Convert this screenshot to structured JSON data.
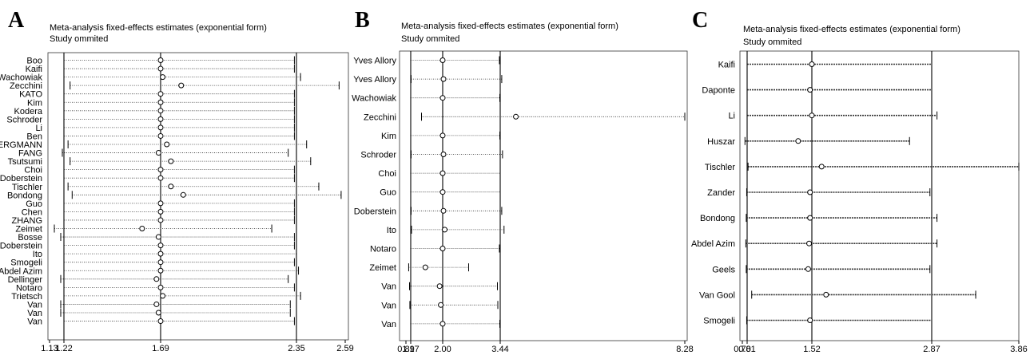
{
  "panels": [
    {
      "letter": "A",
      "title": "Meta-analysis fixed-effects estimates (exponential form)",
      "subtitle": "Study ommited",
      "chart_data": {
        "type": "forest",
        "axis_ticks": [
          "1.13",
          "1.22",
          "1.69",
          "2.35",
          "2.59"
        ],
        "reference_lines": [
          1.22,
          1.69,
          2.35
        ],
        "xlim": [
          1.13,
          2.59
        ],
        "studies": [
          {
            "name": "Boo",
            "low": 1.22,
            "est": 1.69,
            "high": 2.34
          },
          {
            "name": "Kaifi",
            "low": 1.22,
            "est": 1.69,
            "high": 2.34
          },
          {
            "name": "Wachowiak",
            "low": 1.22,
            "est": 1.7,
            "high": 2.37
          },
          {
            "name": "Zecchini",
            "low": 1.25,
            "est": 1.79,
            "high": 2.56
          },
          {
            "name": "KATO",
            "low": 1.22,
            "est": 1.69,
            "high": 2.34
          },
          {
            "name": "Kim",
            "low": 1.22,
            "est": 1.69,
            "high": 2.34
          },
          {
            "name": "Kodera",
            "low": 1.22,
            "est": 1.69,
            "high": 2.34
          },
          {
            "name": "Schroder",
            "low": 1.22,
            "est": 1.69,
            "high": 2.34
          },
          {
            "name": "Li",
            "low": 1.22,
            "est": 1.69,
            "high": 2.34
          },
          {
            "name": "Ben",
            "low": 1.22,
            "est": 1.69,
            "high": 2.34
          },
          {
            "name": "BERGMANN",
            "low": 1.24,
            "est": 1.72,
            "high": 2.4
          },
          {
            "name": "FANG",
            "low": 1.21,
            "est": 1.68,
            "high": 2.31
          },
          {
            "name": "Tsutsumi",
            "low": 1.25,
            "est": 1.74,
            "high": 2.42
          },
          {
            "name": "Choi",
            "low": 1.22,
            "est": 1.69,
            "high": 2.34
          },
          {
            "name": "Doberstein",
            "low": 1.22,
            "est": 1.69,
            "high": 2.34
          },
          {
            "name": "Tischler",
            "low": 1.24,
            "est": 1.74,
            "high": 2.46
          },
          {
            "name": "Bondong",
            "low": 1.26,
            "est": 1.8,
            "high": 2.57
          },
          {
            "name": "Guo",
            "low": 1.22,
            "est": 1.69,
            "high": 2.34
          },
          {
            "name": "Chen",
            "low": 1.22,
            "est": 1.69,
            "high": 2.34
          },
          {
            "name": "ZHANG",
            "low": 1.22,
            "est": 1.69,
            "high": 2.34
          },
          {
            "name": "Zeimet",
            "low": 1.16,
            "est": 1.6,
            "high": 2.23
          },
          {
            "name": "Bosse",
            "low": 1.2,
            "est": 1.68,
            "high": 2.34
          },
          {
            "name": "Doberstein",
            "low": 1.22,
            "est": 1.69,
            "high": 2.34
          },
          {
            "name": "Ito",
            "low": 1.22,
            "est": 1.69,
            "high": 2.35
          },
          {
            "name": "Smogeli",
            "low": 1.22,
            "est": 1.69,
            "high": 2.34
          },
          {
            "name": "Abdel Azim",
            "low": 1.22,
            "est": 1.69,
            "high": 2.36
          },
          {
            "name": "Dellinger",
            "low": 1.2,
            "est": 1.67,
            "high": 2.31
          },
          {
            "name": "Notaro",
            "low": 1.22,
            "est": 1.69,
            "high": 2.34
          },
          {
            "name": "Trietsch",
            "low": 1.22,
            "est": 1.7,
            "high": 2.37
          },
          {
            "name": "Van",
            "low": 1.2,
            "est": 1.67,
            "high": 2.32
          },
          {
            "name": "Van",
            "low": 1.2,
            "est": 1.68,
            "high": 2.32
          },
          {
            "name": "Van",
            "low": 1.22,
            "est": 1.69,
            "high": 2.34
          }
        ]
      }
    },
    {
      "letter": "B",
      "title": "Meta-analysis fixed-effects estimates (exponential form)",
      "subtitle": "Study ommited",
      "chart_data": {
        "type": "forest",
        "axis_ticks": [
          "0.89",
          "1.17",
          "2.00",
          "3.44",
          "8.28"
        ],
        "reference_lines": [
          1.17,
          2.0,
          3.44
        ],
        "xlim": [
          0.89,
          8.28
        ],
        "studies": [
          {
            "name": "Yves Allory",
            "low": 1.17,
            "est": 2.0,
            "high": 3.42
          },
          {
            "name": "Yves Allory",
            "low": 1.18,
            "est": 2.02,
            "high": 3.48
          },
          {
            "name": "Wachowiak",
            "low": 1.17,
            "est": 2.0,
            "high": 3.43
          },
          {
            "name": "Zecchini",
            "low": 1.45,
            "est": 3.85,
            "high": 8.28
          },
          {
            "name": "Kim",
            "low": 1.17,
            "est": 2.0,
            "high": 3.43
          },
          {
            "name": "Schroder",
            "low": 1.18,
            "est": 2.02,
            "high": 3.5
          },
          {
            "name": "Choi",
            "low": 1.17,
            "est": 2.0,
            "high": 3.44
          },
          {
            "name": "Guo",
            "low": 1.17,
            "est": 2.0,
            "high": 3.44
          },
          {
            "name": "Doberstein",
            "low": 1.18,
            "est": 2.02,
            "high": 3.48
          },
          {
            "name": "Ito",
            "low": 1.19,
            "est": 2.05,
            "high": 3.54
          },
          {
            "name": "Notaro",
            "low": 1.17,
            "est": 2.0,
            "high": 3.42
          },
          {
            "name": "Zeimet",
            "low": 1.05,
            "est": 1.55,
            "high": 2.65
          },
          {
            "name": "Van",
            "low": 1.1,
            "est": 1.92,
            "high": 3.37
          },
          {
            "name": "Van",
            "low": 1.12,
            "est": 1.95,
            "high": 3.38
          },
          {
            "name": "Van",
            "low": 1.17,
            "est": 2.0,
            "high": 3.43
          }
        ]
      }
    },
    {
      "letter": "C",
      "title": "Meta-analysis fixed-effects estimates (exponential form)",
      "subtitle": "Study ommited",
      "chart_data": {
        "type": "forest",
        "axis_ticks": [
          "0.70",
          "0.81",
          "1.52",
          "2.87",
          "3.86"
        ],
        "axis_ticks_note": "printed overlapping as 0.7081",
        "reference_lines": [
          0.81,
          1.52,
          2.87
        ],
        "xlim": [
          0.7,
          3.86
        ],
        "studies": [
          {
            "name": "Kaifi",
            "low": 0.81,
            "est": 1.52,
            "high": 2.87
          },
          {
            "name": "Daponte",
            "low": 0.81,
            "est": 1.5,
            "high": 2.87
          },
          {
            "name": "Li",
            "low": 0.81,
            "est": 1.52,
            "high": 2.93
          },
          {
            "name": "Huszar",
            "low": 0.76,
            "est": 1.37,
            "high": 2.62
          },
          {
            "name": "Tischler",
            "low": 0.82,
            "est": 1.63,
            "high": 3.86
          },
          {
            "name": "Zander",
            "low": 0.8,
            "est": 1.5,
            "high": 2.85
          },
          {
            "name": "Bondong",
            "low": 0.79,
            "est": 1.5,
            "high": 2.93
          },
          {
            "name": "Abdel Azim",
            "low": 0.78,
            "est": 1.49,
            "high": 2.93
          },
          {
            "name": "Geels",
            "low": 0.79,
            "est": 1.48,
            "high": 2.85
          },
          {
            "name": "Van Gool",
            "low": 0.86,
            "est": 1.68,
            "high": 3.37
          },
          {
            "name": "Smogeli",
            "low": 0.8,
            "est": 1.5,
            "high": 2.87
          }
        ]
      }
    }
  ]
}
